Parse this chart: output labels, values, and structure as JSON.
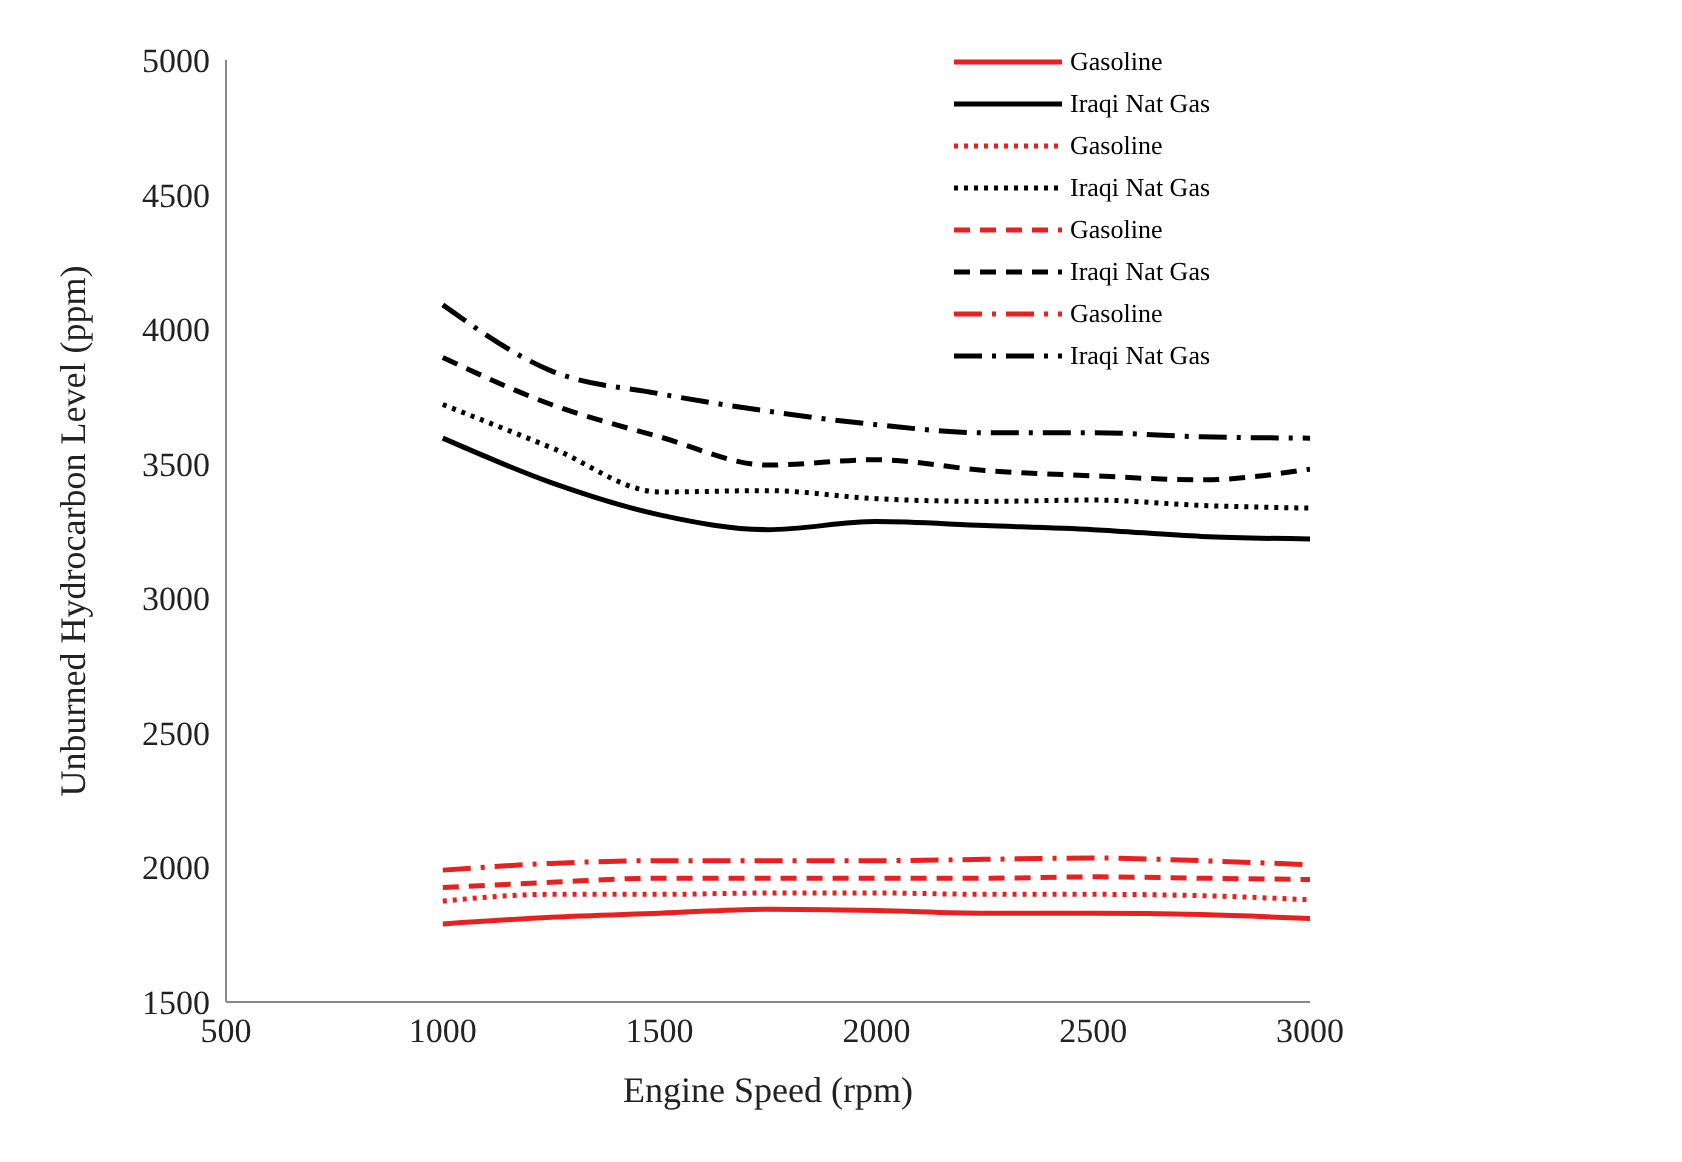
{
  "chart_data": {
    "type": "line",
    "xlabel": "Engine Speed (rpm)",
    "ylabel": "Unburned Hydrocarbon Level (ppm)",
    "x": [
      1000,
      1250,
      1500,
      1750,
      2000,
      2250,
      2500,
      2750,
      3000
    ],
    "xlim": [
      500,
      3000
    ],
    "xticks": [
      500,
      1000,
      1500,
      2000,
      2500,
      3000
    ],
    "ylim": [
      1500,
      5000
    ],
    "yticks": [
      1500,
      2000,
      2500,
      3000,
      3500,
      4000,
      4500,
      5000
    ],
    "grid": false,
    "legend": "top right",
    "marker": "none",
    "series": [
      {
        "name": "Gasoline",
        "color": "#e8201f",
        "line_style": "solid",
        "values": [
          1790,
          1815,
          1830,
          1845,
          1840,
          1830,
          1830,
          1825,
          1810
        ]
      },
      {
        "name": "Iraqi Nat Gas",
        "color": "#000000",
        "line_style": "solid",
        "values": [
          3595,
          3430,
          3310,
          3255,
          3285,
          3270,
          3255,
          3230,
          3220
        ]
      },
      {
        "name": "Gasoline",
        "color": "#e8201f",
        "line_style": "dotted",
        "values": [
          1875,
          1900,
          1900,
          1905,
          1905,
          1900,
          1900,
          1895,
          1880
        ]
      },
      {
        "name": "Iraqi Nat Gas",
        "color": "#000000",
        "line_style": "dotted",
        "values": [
          3720,
          3560,
          3395,
          3400,
          3370,
          3360,
          3365,
          3345,
          3335
        ]
      },
      {
        "name": "Gasoline",
        "color": "#e8201f",
        "line_style": "dashed",
        "values": [
          1925,
          1945,
          1960,
          1960,
          1960,
          1960,
          1965,
          1960,
          1955
        ]
      },
      {
        "name": "Iraqi Nat Gas",
        "color": "#000000",
        "line_style": "dashed",
        "values": [
          3895,
          3720,
          3600,
          3495,
          3515,
          3475,
          3455,
          3440,
          3480
        ]
      },
      {
        "name": "Gasoline",
        "color": "#e8201f",
        "line_style": "dash-dot",
        "values": [
          1990,
          2015,
          2025,
          2025,
          2025,
          2030,
          2035,
          2025,
          2010
        ]
      },
      {
        "name": "Iraqi Nat Gas",
        "color": "#000000",
        "line_style": "dash-dot",
        "values": [
          4090,
          3845,
          3760,
          3695,
          3645,
          3615,
          3615,
          3600,
          3595
        ]
      }
    ]
  }
}
